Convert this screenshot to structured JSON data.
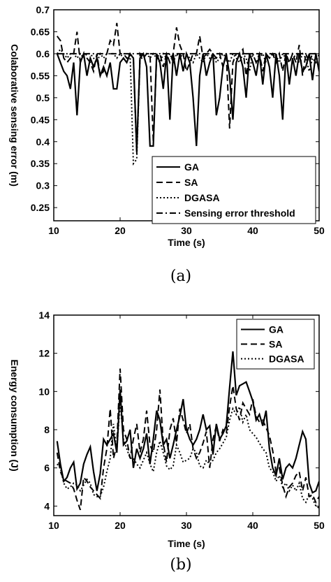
{
  "chart_data": [
    {
      "type": "line",
      "caption": "(a)",
      "xlabel": "Time (s)",
      "ylabel": "Colaborative sensing error (m)",
      "xlim": [
        10,
        50
      ],
      "ylim": [
        0.22,
        0.7
      ],
      "xticks": [
        10,
        20,
        30,
        40,
        50
      ],
      "yticks": [
        0.25,
        0.3,
        0.35,
        0.4,
        0.45,
        0.5,
        0.55,
        0.6,
        0.65,
        0.7
      ],
      "legend_position": "bottom-right",
      "x": [
        10.5,
        11,
        11.5,
        12,
        12.5,
        13,
        13.5,
        14,
        14.5,
        15,
        15.5,
        16,
        16.5,
        17,
        17.5,
        18,
        18.5,
        19,
        19.5,
        20,
        20.5,
        21,
        21.5,
        22,
        22.5,
        23,
        23.5,
        24,
        24.5,
        25,
        25.5,
        26,
        26.5,
        27,
        27.5,
        28,
        28.5,
        29,
        29.5,
        30,
        30.5,
        31,
        31.5,
        32,
        32.5,
        33,
        33.5,
        34,
        34.5,
        35,
        35.5,
        36,
        36.5,
        37,
        37.5,
        38,
        38.5,
        39,
        39.5,
        40,
        40.5,
        41,
        41.5,
        42,
        42.5,
        43,
        43.5,
        44,
        44.5,
        45,
        45.5,
        46,
        46.5,
        47,
        47.5,
        48,
        48.5,
        49,
        49.5,
        50
      ],
      "series": [
        {
          "name": "GA",
          "style": "solid",
          "values": [
            0.6,
            0.58,
            0.56,
            0.55,
            0.52,
            0.58,
            0.46,
            0.58,
            0.6,
            0.55,
            0.59,
            0.57,
            0.59,
            0.55,
            0.57,
            0.55,
            0.58,
            0.52,
            0.52,
            0.58,
            0.59,
            0.58,
            0.6,
            0.59,
            0.38,
            0.59,
            0.6,
            0.57,
            0.39,
            0.39,
            0.6,
            0.58,
            0.52,
            0.6,
            0.45,
            0.6,
            0.55,
            0.6,
            0.56,
            0.6,
            0.58,
            0.5,
            0.39,
            0.55,
            0.6,
            0.55,
            0.58,
            0.6,
            0.46,
            0.5,
            0.57,
            0.6,
            0.55,
            0.45,
            0.58,
            0.6,
            0.57,
            0.5,
            0.6,
            0.58,
            0.55,
            0.6,
            0.53,
            0.6,
            0.57,
            0.5,
            0.6,
            0.55,
            0.45,
            0.6,
            0.53,
            0.59,
            0.55,
            0.6,
            0.56,
            0.57,
            0.6,
            0.54,
            0.6,
            0.56
          ]
        },
        {
          "name": "SA",
          "style": "dashed",
          "values": [
            0.64,
            0.63,
            0.59,
            0.58,
            0.59,
            0.6,
            0.65,
            0.58,
            0.6,
            0.59,
            0.58,
            0.56,
            0.6,
            0.55,
            0.56,
            0.6,
            0.63,
            0.62,
            0.67,
            0.6,
            0.6,
            0.59,
            0.59,
            0.59,
            0.37,
            0.6,
            0.59,
            0.6,
            0.6,
            0.4,
            0.59,
            0.6,
            0.57,
            0.6,
            0.58,
            0.6,
            0.66,
            0.62,
            0.6,
            0.56,
            0.58,
            0.6,
            0.6,
            0.64,
            0.59,
            0.6,
            0.61,
            0.6,
            0.59,
            0.6,
            0.57,
            0.6,
            0.43,
            0.58,
            0.6,
            0.6,
            0.61,
            0.55,
            0.6,
            0.6,
            0.58,
            0.6,
            0.56,
            0.6,
            0.59,
            0.6,
            0.58,
            0.6,
            0.56,
            0.6,
            0.58,
            0.6,
            0.58,
            0.62,
            0.55,
            0.6,
            0.58,
            0.6,
            0.6,
            0.56
          ]
        },
        {
          "name": "DGASA",
          "style": "dotted",
          "values": [
            0.6,
            0.61,
            0.6,
            0.59,
            0.6,
            0.6,
            0.59,
            0.6,
            0.59,
            0.6,
            0.6,
            0.59,
            0.58,
            0.6,
            0.59,
            0.6,
            0.6,
            0.6,
            0.59,
            0.6,
            0.59,
            0.59,
            0.6,
            0.35,
            0.36,
            0.59,
            0.59,
            0.6,
            0.59,
            0.6,
            0.59,
            0.58,
            0.6,
            0.59,
            0.6,
            0.58,
            0.6,
            0.59,
            0.6,
            0.6,
            0.59,
            0.58,
            0.6,
            0.59,
            0.58,
            0.6,
            0.59,
            0.6,
            0.58,
            0.59,
            0.6,
            0.59,
            0.58,
            0.6,
            0.59,
            0.58,
            0.6,
            0.59,
            0.56,
            0.6,
            0.58,
            0.59,
            0.6,
            0.58,
            0.59,
            0.6,
            0.59,
            0.58,
            0.6,
            0.59,
            0.58,
            0.6,
            0.59,
            0.58,
            0.6,
            0.59,
            0.56,
            0.59,
            0.58,
            0.6
          ]
        },
        {
          "name": "Sensing error threshold",
          "style": "dashdot",
          "values": [
            0.6,
            0.6,
            0.6,
            0.6,
            0.6,
            0.6,
            0.6,
            0.6,
            0.6,
            0.6,
            0.6,
            0.6,
            0.6,
            0.6,
            0.6,
            0.6,
            0.6,
            0.6,
            0.6,
            0.6,
            0.6,
            0.6,
            0.6,
            0.6,
            0.6,
            0.6,
            0.6,
            0.6,
            0.6,
            0.6,
            0.6,
            0.6,
            0.6,
            0.6,
            0.6,
            0.6,
            0.6,
            0.6,
            0.6,
            0.6,
            0.6,
            0.6,
            0.6,
            0.6,
            0.6,
            0.6,
            0.6,
            0.6,
            0.6,
            0.6,
            0.6,
            0.6,
            0.6,
            0.6,
            0.6,
            0.6,
            0.6,
            0.6,
            0.6,
            0.6,
            0.6,
            0.6,
            0.6,
            0.6,
            0.6,
            0.6,
            0.6,
            0.6,
            0.6,
            0.6,
            0.6,
            0.6,
            0.6,
            0.6,
            0.6,
            0.6,
            0.6,
            0.6,
            0.6,
            0.6
          ]
        }
      ]
    },
    {
      "type": "line",
      "caption": "(b)",
      "xlabel": "Time (s)",
      "ylabel": "Energy consumption (J)",
      "xlim": [
        10,
        50
      ],
      "ylim": [
        3.5,
        14
      ],
      "xticks": [
        10,
        20,
        30,
        40,
        50
      ],
      "yticks": [
        4,
        6,
        8,
        10,
        12,
        14
      ],
      "legend_position": "top-right",
      "x": [
        10.5,
        11,
        11.5,
        12,
        12.5,
        13,
        13.5,
        14,
        14.5,
        15,
        15.5,
        16,
        16.5,
        17,
        17.5,
        18,
        18.5,
        19,
        19.5,
        20,
        20.5,
        21,
        21.5,
        22,
        22.5,
        23,
        23.5,
        24,
        24.5,
        25,
        25.5,
        26,
        26.5,
        27,
        27.5,
        28,
        28.5,
        29,
        29.5,
        30,
        30.5,
        31,
        31.5,
        32,
        32.5,
        33,
        33.5,
        34,
        34.5,
        35,
        35.5,
        36,
        36.5,
        37,
        37.5,
        38,
        38.5,
        39,
        39.5,
        40,
        40.5,
        41,
        41.5,
        42,
        42.5,
        43,
        43.5,
        44,
        44.5,
        45,
        45.5,
        46,
        46.5,
        47,
        47.5,
        48,
        48.5,
        49,
        49.5,
        50
      ],
      "series": [
        {
          "name": "GA",
          "style": "solid",
          "values": [
            7.4,
            6.2,
            5.3,
            5.5,
            6,
            6.3,
            4.9,
            5.2,
            6.2,
            6.7,
            7.1,
            5.8,
            4.8,
            5.7,
            7.5,
            7.2,
            7.5,
            7.8,
            6.8,
            10.1,
            7.2,
            7.4,
            8,
            6,
            7,
            6.5,
            7,
            7.8,
            6.2,
            7.5,
            9,
            8.5,
            7.2,
            7.5,
            6.5,
            7.2,
            8,
            8.7,
            9.6,
            8,
            7.5,
            7.2,
            7.5,
            8,
            8.8,
            8,
            8.2,
            6.7,
            8.3,
            7.5,
            7.8,
            8.2,
            10.2,
            12.1,
            9.8,
            10.3,
            10.4,
            10.5,
            10,
            9.5,
            8.5,
            8.8,
            8.2,
            9,
            7,
            6,
            5.6,
            6.5,
            5.4,
            6,
            6.2,
            6,
            6.5,
            7.2,
            7.9,
            7.5,
            5.2,
            4.7,
            4.8,
            5.3
          ]
        },
        {
          "name": "SA",
          "style": "dashed",
          "values": [
            6.8,
            5.8,
            5.4,
            5.3,
            5.2,
            4.9,
            4.3,
            3.8,
            5.5,
            5.3,
            5,
            4.8,
            4.6,
            4.4,
            6,
            7,
            9.1,
            6.5,
            7.2,
            11.2,
            8,
            7.5,
            6.5,
            7.5,
            8.3,
            6.8,
            7.5,
            9,
            7.2,
            6.8,
            8,
            10.1,
            7.3,
            6.3,
            8,
            8.6,
            7.3,
            9.1,
            8.5,
            7.8,
            8.3,
            7,
            6.5,
            6.8,
            7.3,
            7.9,
            6,
            7.5,
            8.2,
            7.4,
            8,
            7.8,
            9.2,
            10.3,
            9.1,
            8.5,
            9.4,
            9.1,
            8.8,
            9.6,
            8.7,
            8.4,
            8.5,
            8.1,
            7.7,
            6.9,
            5.8,
            6,
            5.1,
            4.5,
            5,
            5.2,
            5.6,
            5.8,
            4.8,
            5.5,
            4.5,
            4.6,
            4.2,
            4.5
          ]
        },
        {
          "name": "DGASA",
          "style": "dotted",
          "values": [
            6.2,
            6,
            5.2,
            4.9,
            5,
            5.2,
            5.1,
            4.8,
            5.1,
            5.4,
            5.2,
            4.6,
            4.5,
            4.5,
            5,
            5.8,
            6.5,
            8.3,
            6.9,
            9.5,
            7.5,
            7,
            6.5,
            6.5,
            6.2,
            6,
            6.4,
            6.8,
            6.2,
            5.8,
            6.8,
            7.4,
            6.8,
            6.1,
            5.9,
            6.1,
            7.2,
            6.8,
            6.3,
            6.4,
            6.5,
            7,
            6.8,
            6.1,
            6,
            6.4,
            6.2,
            6.4,
            6.8,
            7,
            7.3,
            7.6,
            8.5,
            9.1,
            8.8,
            9.2,
            8.4,
            8.8,
            8,
            7.8,
            7.6,
            7.3,
            7,
            6.8,
            6,
            5.8,
            5.3,
            5.6,
            5,
            5.2,
            4.8,
            5.1,
            4.8,
            5.2,
            4.4,
            4.2,
            4.6,
            4.4,
            4,
            3.9
          ]
        }
      ]
    }
  ]
}
